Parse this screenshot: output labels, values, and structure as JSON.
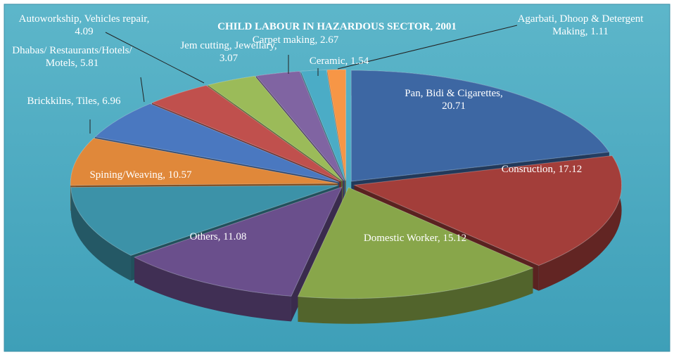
{
  "chart_data": {
    "type": "pie",
    "title": "CHILD LABOUR IN HAZARDOUS SECTOR, 2001",
    "categories": [
      "Pan, Bidi & Cigarettes",
      "Consruction",
      "Domestic Worker",
      "Others",
      "Spining/Weaving",
      "Brickkilns, Tiles",
      "Dhabas/ Restaurants/Hotels/ Motels",
      "Autoworkship, Vehicles repair",
      "Jem cutting, Jewellary",
      "Carpet making",
      "Ceramic",
      "Agarbati, Dhoop & Detergent Making"
    ],
    "values": [
      20.71,
      17.12,
      15.12,
      11.08,
      10.57,
      6.96,
      5.81,
      4.09,
      3.07,
      2.67,
      1.54,
      1.11
    ],
    "colors": [
      "#3d67a3",
      "#a33e3a",
      "#88a64a",
      "#6a4f8c",
      "#3c92a8",
      "#e0883a",
      "#4a78c0",
      "#c0504d",
      "#9bbb59",
      "#8064a2",
      "#4bacc6",
      "#f79646"
    ]
  }
}
